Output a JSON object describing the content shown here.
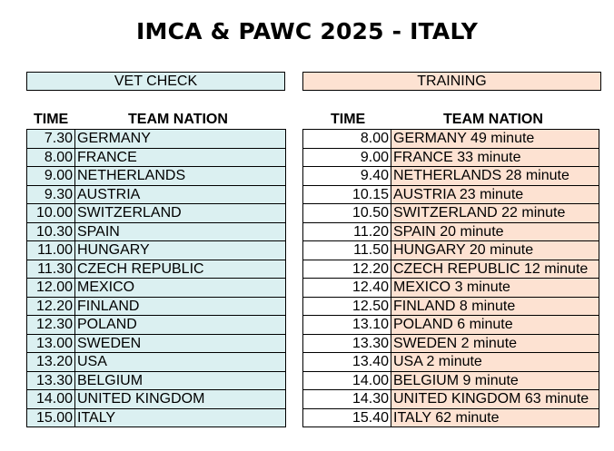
{
  "title": "IMCA & PAWC 2025 - ITALY",
  "vet_check": {
    "header": "VET CHECK",
    "col_time": "TIME",
    "col_team": "TEAM NATION",
    "rows": [
      {
        "time": "7.30",
        "team": "GERMANY"
      },
      {
        "time": "8.00",
        "team": "FRANCE"
      },
      {
        "time": "9.00",
        "team": "NETHERLANDS"
      },
      {
        "time": "9.30",
        "team": "AUSTRIA"
      },
      {
        "time": "10.00",
        "team": "SWITZERLAND"
      },
      {
        "time": "10.30",
        "team": "SPAIN"
      },
      {
        "time": "11.00",
        "team": "HUNGARY"
      },
      {
        "time": "11.30",
        "team": "CZECH REPUBLIC"
      },
      {
        "time": "12.00",
        "team": "MEXICO"
      },
      {
        "time": "12.20",
        "team": "FINLAND"
      },
      {
        "time": "12.30",
        "team": "POLAND"
      },
      {
        "time": "13.00",
        "team": "SWEDEN"
      },
      {
        "time": "13.20",
        "team": "USA"
      },
      {
        "time": "13.30",
        "team": "BELGIUM"
      },
      {
        "time": "14.00",
        "team": "UNITED KINGDOM"
      },
      {
        "time": "15.00",
        "team": "ITALY"
      }
    ]
  },
  "training": {
    "header": "TRAINING",
    "col_time": "TIME",
    "col_team": "TEAM NATION",
    "rows": [
      {
        "time": "8.00",
        "team": "GERMANY 49 minute"
      },
      {
        "time": "9.00",
        "team": "FRANCE 33 minute"
      },
      {
        "time": "9.40",
        "team": "NETHERLANDS 28 minute"
      },
      {
        "time": "10.15",
        "team": "AUSTRIA 23 minute"
      },
      {
        "time": "10.50",
        "team": "SWITZERLAND 22 minute"
      },
      {
        "time": "11.20",
        "team": "SPAIN 20 minute"
      },
      {
        "time": "11.50",
        "team": "HUNGARY 20 minute"
      },
      {
        "time": "12.20",
        "team": "CZECH REPUBLIC 12 minute"
      },
      {
        "time": "12.40",
        "team": "MEXICO 3 minute"
      },
      {
        "time": "12.50",
        "team": "FINLAND 8 minute"
      },
      {
        "time": "13.10",
        "team": "POLAND 6 minute"
      },
      {
        "time": "13.30",
        "team": "SWEDEN 2 minute"
      },
      {
        "time": "13.40",
        "team": "USA 2 minute"
      },
      {
        "time": "14.00",
        "team": "BELGIUM 9  minute"
      },
      {
        "time": "14.30",
        "team": "UNITED KINGDOM 63 minute"
      },
      {
        "time": "15.40",
        "team": "ITALY 62 minute"
      }
    ]
  },
  "colors": {
    "vet_fill": "#dbf0f1",
    "training_fill": "#fde2d2"
  }
}
